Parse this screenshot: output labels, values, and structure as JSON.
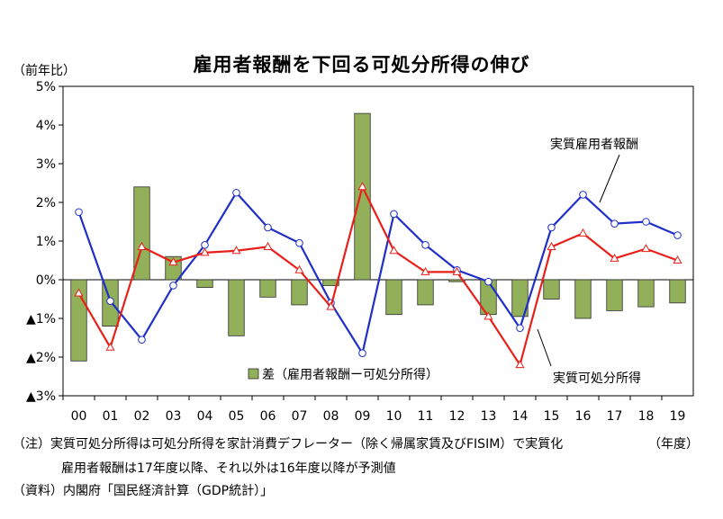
{
  "chart_data": {
    "type": "bar",
    "title": "雇用者報酬を下回る可処分所得の伸び",
    "y_unit_label": "（前年比）",
    "x_unit_label": "（年度）",
    "categories": [
      "00",
      "01",
      "02",
      "03",
      "04",
      "05",
      "06",
      "07",
      "08",
      "09",
      "10",
      "11",
      "12",
      "13",
      "14",
      "15",
      "16",
      "17",
      "18",
      "19"
    ],
    "ylim": [
      -3,
      5
    ],
    "y_ticks": [
      {
        "value": 5,
        "label": "5%"
      },
      {
        "value": 4,
        "label": "4%"
      },
      {
        "value": 3,
        "label": "3%"
      },
      {
        "value": 2,
        "label": "2%"
      },
      {
        "value": 1,
        "label": "1%"
      },
      {
        "value": 0,
        "label": "0%"
      },
      {
        "value": -1,
        "label": "▲1%"
      },
      {
        "value": -2,
        "label": "▲2%"
      },
      {
        "value": -3,
        "label": "▲3%"
      }
    ],
    "grid": false,
    "series": [
      {
        "name": "差（雇用者報酬ー可処分所得）",
        "kind": "bar",
        "color": "#92b05a",
        "values": [
          -2.1,
          -1.2,
          2.4,
          0.6,
          -0.2,
          -1.45,
          -0.45,
          -0.65,
          -0.15,
          4.3,
          -0.9,
          -0.65,
          -0.05,
          -0.9,
          -0.95,
          -0.5,
          -1.0,
          -0.8,
          -0.7,
          -0.6
        ]
      },
      {
        "name": "実質雇用者報酬",
        "kind": "line",
        "color": "#1f2fc8",
        "marker": "circle",
        "values": [
          1.75,
          -0.55,
          -1.55,
          -0.15,
          0.9,
          2.25,
          1.35,
          0.95,
          -0.6,
          -1.9,
          1.7,
          0.9,
          0.25,
          -0.05,
          -1.25,
          1.35,
          2.2,
          1.45,
          1.5,
          1.15
        ]
      },
      {
        "name": "実質可処分所得",
        "kind": "line",
        "color": "#e8201a",
        "marker": "triangle",
        "values": [
          -0.35,
          -1.75,
          0.85,
          0.45,
          0.7,
          0.75,
          0.85,
          0.25,
          -0.7,
          2.4,
          0.75,
          0.2,
          0.2,
          -0.95,
          -2.2,
          0.85,
          1.2,
          0.55,
          0.8,
          0.5
        ]
      }
    ]
  },
  "notes": {
    "line1": "（注）実質可処分所得は可処分所得を家計消費デフレーター（除く帰属家賃及びFISIM）で実質化",
    "line2": "雇用者報酬は17年度以降、それ以外は16年度以降が予測値",
    "line3": "（資料）内閣府「国民経済計算（GDP統計）」"
  }
}
